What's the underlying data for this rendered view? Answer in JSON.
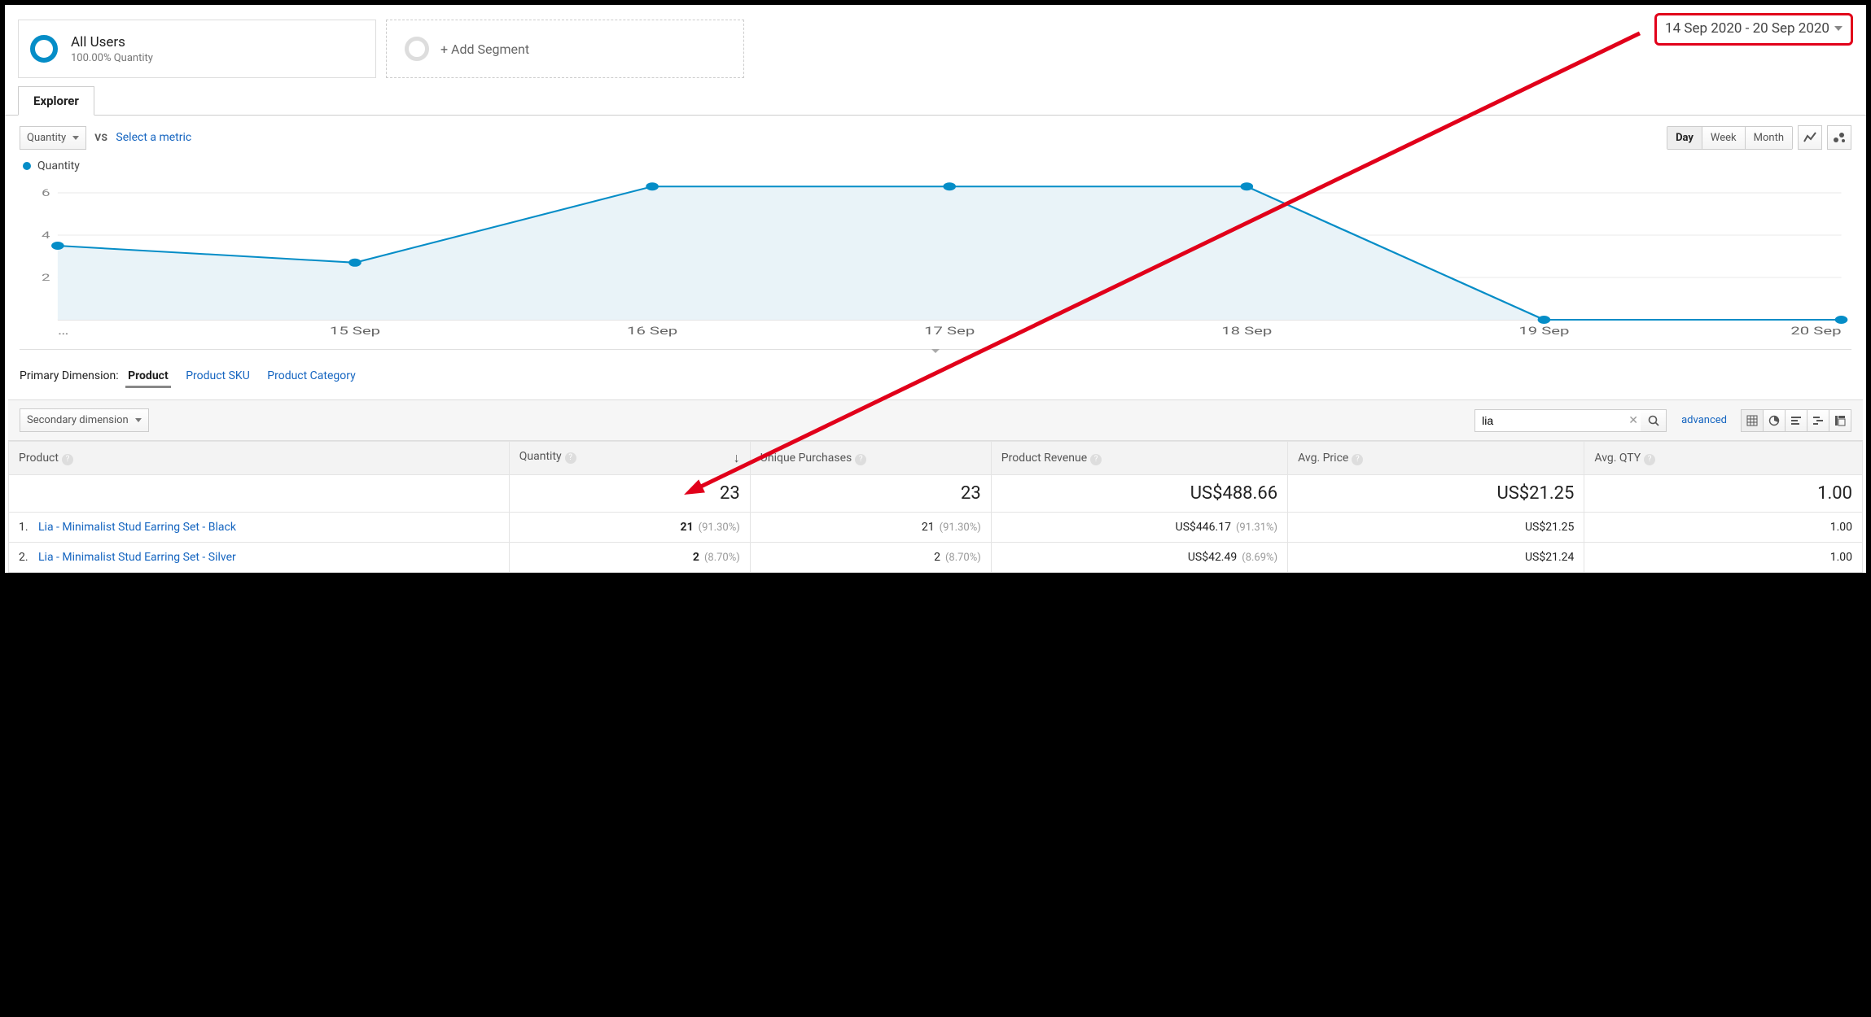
{
  "segments": {
    "primary": {
      "title": "All Users",
      "subtitle": "100.00% Quantity",
      "ring_color": "#058dc7"
    },
    "add_label": "+ Add Segment"
  },
  "date_range": {
    "text": "14 Sep 2020 - 20 Sep 2020",
    "highlight_border": "#e1001a"
  },
  "tab": {
    "label": "Explorer"
  },
  "metric_picker": {
    "primary": "Quantity",
    "vs": "VS",
    "compare_prompt": "Select a metric",
    "granularity": [
      "Day",
      "Week",
      "Month"
    ],
    "granularity_active": "Day"
  },
  "chart": {
    "type": "line",
    "legend": "Quantity",
    "series_color": "#058dc7",
    "area_fill": "#e9f3f8",
    "grid_color": "#e8e8e8",
    "axis_color": "#c8c8c8",
    "x_labels": [
      "…",
      "15 Sep",
      "16 Sep",
      "17 Sep",
      "18 Sep",
      "19 Sep",
      "20 Sep"
    ],
    "y_ticks": [
      2,
      4,
      6
    ],
    "ylim": [
      0,
      6.5
    ],
    "values": [
      3.5,
      2.7,
      6.3,
      6.3,
      6.3,
      0,
      0
    ],
    "point_radius": 5,
    "line_width": 2
  },
  "dimensions": {
    "label": "Primary Dimension:",
    "active": "Product",
    "others": [
      "Product SKU",
      "Product Category"
    ]
  },
  "toolbar2": {
    "secondary_label": "Secondary dimension",
    "search_value": "lia",
    "advanced": "advanced"
  },
  "table": {
    "columns": [
      "Product",
      "Quantity",
      "Unique Purchases",
      "Product Revenue",
      "Avg. Price",
      "Avg. QTY"
    ],
    "sort_col": 1,
    "totals": [
      "",
      "23",
      "23",
      "US$488.66",
      "US$21.25",
      "1.00"
    ],
    "rows": [
      {
        "idx": "1.",
        "product": "Lia - Minimalist Stud Earring Set - Black",
        "cells": [
          {
            "v": "21",
            "p": "(91.30%)",
            "bold": true
          },
          {
            "v": "21",
            "p": "(91.30%)"
          },
          {
            "v": "US$446.17",
            "p": "(91.31%)"
          },
          {
            "v": "US$21.25",
            "p": ""
          },
          {
            "v": "1.00",
            "p": ""
          }
        ]
      },
      {
        "idx": "2.",
        "product": "Lia - Minimalist Stud Earring Set - Silver",
        "cells": [
          {
            "v": "2",
            "p": "(8.70%)",
            "bold": true
          },
          {
            "v": "2",
            "p": "(8.70%)"
          },
          {
            "v": "US$42.49",
            "p": "(8.69%)"
          },
          {
            "v": "US$21.24",
            "p": ""
          },
          {
            "v": "1.00",
            "p": ""
          }
        ]
      }
    ]
  },
  "annotation": {
    "color": "#e1001a",
    "from": [
      1300,
      40
    ],
    "to": [
      540,
      690
    ],
    "head_size": 26
  }
}
